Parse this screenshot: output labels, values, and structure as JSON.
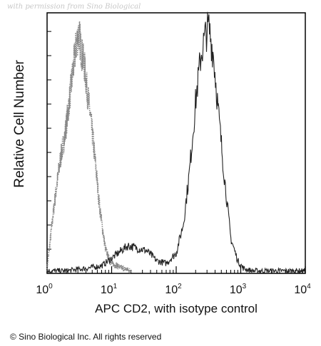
{
  "watermark": "with permission from Sino Biological",
  "copyright": "© Sino Biological Inc. All rights reserved",
  "chart_data": {
    "type": "line",
    "title": "",
    "xlabel": "APC CD2, with isotype control",
    "ylabel": "Relative Cell Number",
    "xscale": "log",
    "xlim": [
      1,
      10000
    ],
    "ylim": [
      0,
      100
    ],
    "grid": false,
    "legend": "none",
    "x_ticks": [
      {
        "base": "10",
        "exp": "0"
      },
      {
        "base": "10",
        "exp": "1"
      },
      {
        "base": "10",
        "exp": "2"
      },
      {
        "base": "10",
        "exp": "3"
      },
      {
        "base": "10",
        "exp": "4"
      }
    ],
    "series": [
      {
        "style": "dotted",
        "color": "#888888",
        "x": [
          1.0,
          1.3,
          1.6,
          1.9,
          2.2,
          2.5,
          2.8,
          3.1,
          3.4,
          3.8,
          4.2,
          4.7,
          5.2,
          5.8,
          6.4,
          7.2,
          8.0,
          9.0,
          10.0,
          12.0,
          15.0,
          20.0
        ],
        "y": [
          2,
          28,
          45,
          55,
          68,
          80,
          90,
          96,
          88,
          82,
          72,
          62,
          52,
          40,
          28,
          18,
          10,
          6,
          4,
          3,
          2,
          1
        ]
      },
      {
        "style": "solid",
        "color": "#222222",
        "x": [
          1.0,
          2.0,
          4.0,
          7.0,
          10.0,
          14.0,
          18.0,
          25.0,
          35.0,
          50.0,
          70.0,
          100.0,
          130.0,
          160.0,
          200.0,
          240.0,
          280.0,
          320.0,
          380.0,
          450.0,
          550.0,
          700.0,
          900.0,
          1100.0,
          1500.0,
          3000.0,
          10000.0
        ],
        "y": [
          1,
          1,
          2,
          3,
          6,
          9,
          11,
          10,
          9,
          5,
          4,
          8,
          20,
          40,
          68,
          86,
          94,
          98,
          86,
          64,
          40,
          14,
          5,
          2,
          1,
          1,
          1
        ]
      }
    ]
  }
}
